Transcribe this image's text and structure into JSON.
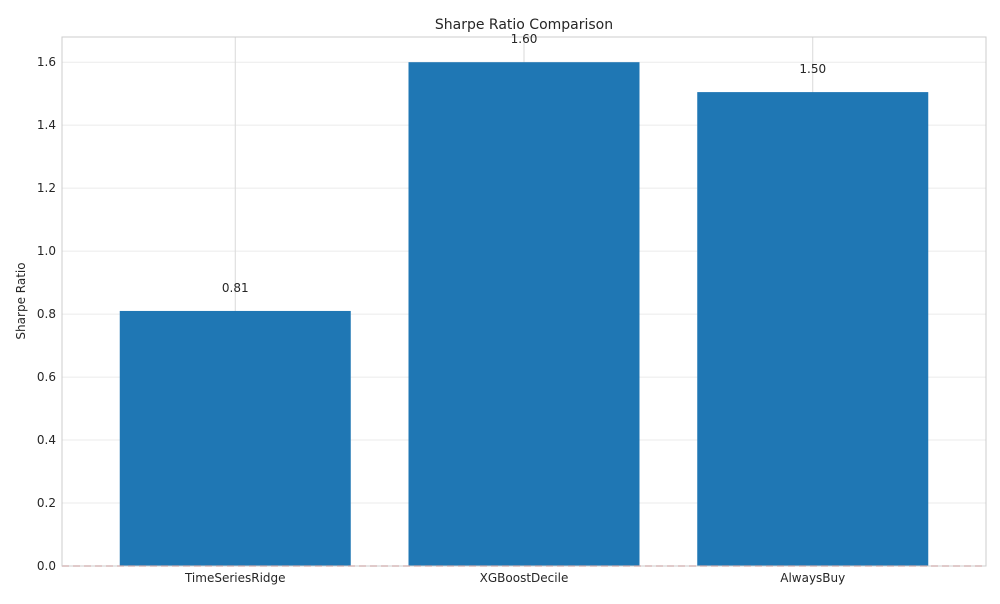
{
  "chart_data": {
    "type": "bar",
    "title": "Sharpe Ratio Comparison",
    "xlabel": "",
    "ylabel": "Sharpe Ratio",
    "categories": [
      "TimeSeriesRidge",
      "XGBoostDecile",
      "AlwaysBuy"
    ],
    "values": [
      0.81,
      1.6,
      1.505
    ],
    "value_labels": [
      "0.81",
      "1.60",
      "1.50"
    ],
    "ylim": [
      0,
      1.68
    ],
    "yticks": [
      0.0,
      0.2,
      0.4,
      0.6,
      0.8,
      1.0,
      1.2,
      1.4,
      1.6
    ],
    "ytick_labels": [
      "0.0",
      "0.2",
      "0.4",
      "0.6",
      "0.8",
      "1.0",
      "1.2",
      "1.4",
      "1.6"
    ],
    "grid": true,
    "reference_line": {
      "y": 0,
      "style": "dashed"
    },
    "colors": {
      "bar": "#1f77b4",
      "reference_line": "#d62728",
      "grid": "#ebebeb",
      "axis_frame": "#cccccc",
      "text": "#262626"
    }
  }
}
